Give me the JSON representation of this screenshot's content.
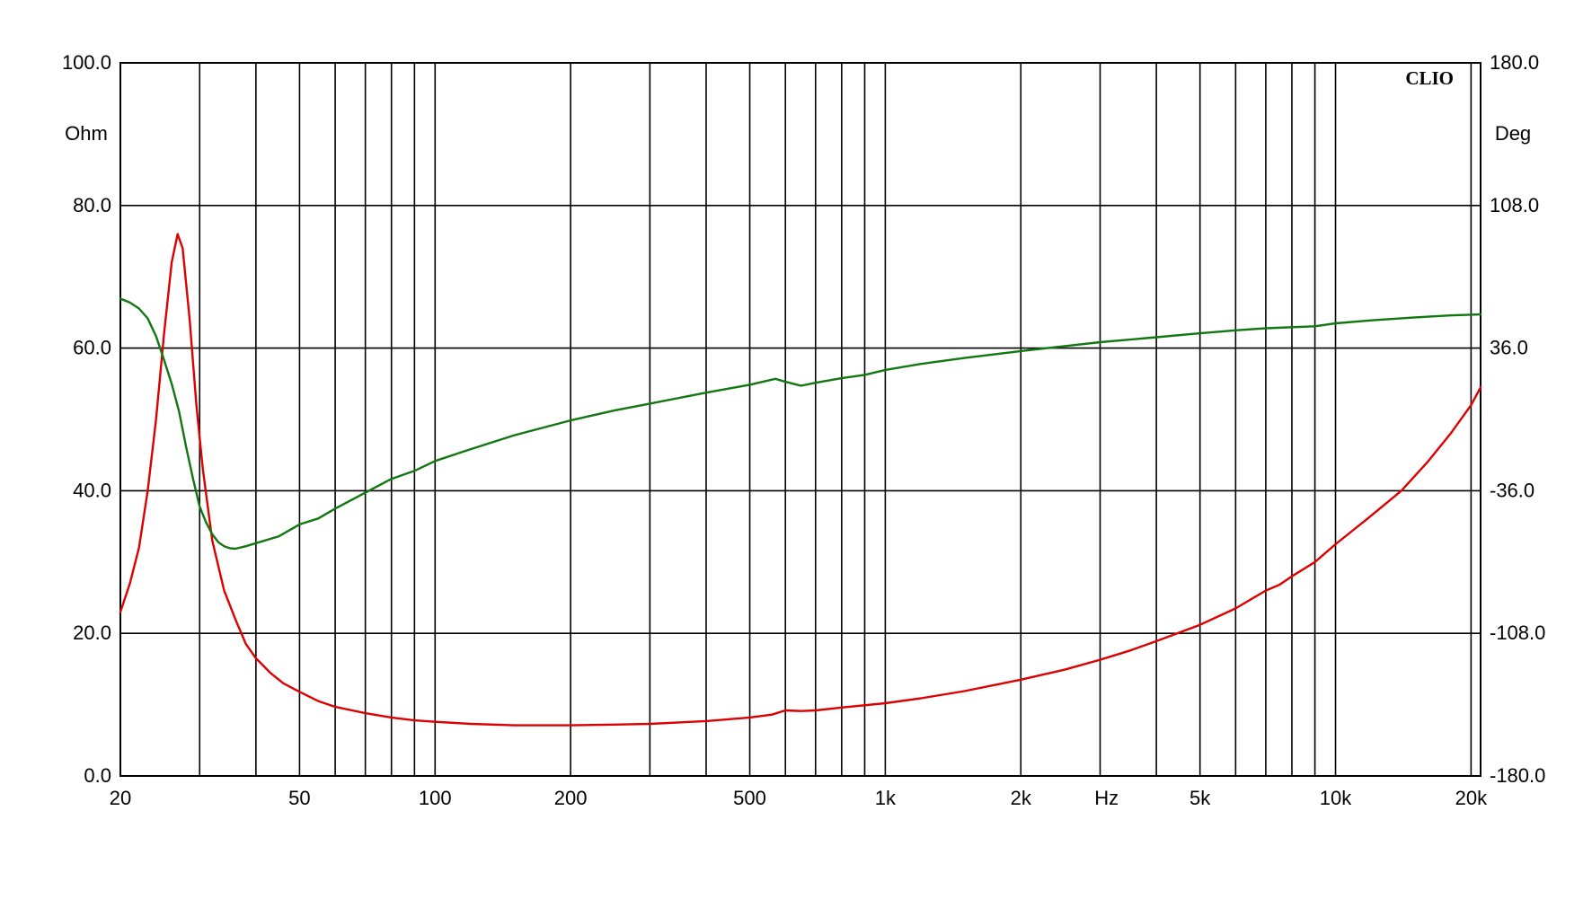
{
  "chart_data": {
    "type": "line",
    "brand": "CLIO",
    "x_scale": "log",
    "xlim": [
      20,
      21000
    ],
    "ylim_left": [
      0,
      100
    ],
    "ylim_right": [
      -180,
      180
    ],
    "grid": true,
    "left_unit": "Ohm",
    "right_unit": "Deg",
    "x_unit": "Hz",
    "x_ticks": [
      {
        "value": 20,
        "label": "20"
      },
      {
        "value": 50,
        "label": "50"
      },
      {
        "value": 100,
        "label": "100"
      },
      {
        "value": 200,
        "label": "200"
      },
      {
        "value": 500,
        "label": "500"
      },
      {
        "value": 1000,
        "label": "1k"
      },
      {
        "value": 2000,
        "label": "2k"
      },
      {
        "value": 5000,
        "label": "5k"
      },
      {
        "value": 10000,
        "label": "10k"
      },
      {
        "value": 20000,
        "label": "20k"
      }
    ],
    "x_gridlines": [
      20,
      30,
      40,
      50,
      60,
      70,
      80,
      90,
      100,
      200,
      300,
      400,
      500,
      600,
      700,
      800,
      900,
      1000,
      2000,
      3000,
      4000,
      5000,
      6000,
      7000,
      8000,
      9000,
      10000,
      20000
    ],
    "y_left_ticks": [
      {
        "value": 100,
        "label": "100.0"
      },
      {
        "value": 80,
        "label": "80.0"
      },
      {
        "value": 60,
        "label": "60.0"
      },
      {
        "value": 40,
        "label": "40.0"
      },
      {
        "value": 20,
        "label": "20.0"
      },
      {
        "value": 0,
        "label": "0.0"
      }
    ],
    "y_right_ticks": [
      {
        "value": 180,
        "label": "180.0"
      },
      {
        "value": 108,
        "label": "108.0"
      },
      {
        "value": 36,
        "label": "36.0"
      },
      {
        "value": -36,
        "label": "-36.0"
      },
      {
        "value": -108,
        "label": "-108.0"
      },
      {
        "value": -180,
        "label": "-180.0"
      }
    ],
    "series": [
      {
        "axis": "left",
        "color": "#dd0000",
        "points": [
          [
            20,
            23
          ],
          [
            21,
            27
          ],
          [
            22,
            32
          ],
          [
            23,
            40
          ],
          [
            24,
            50
          ],
          [
            25,
            62
          ],
          [
            26,
            72
          ],
          [
            26.8,
            76
          ],
          [
            27.5,
            74
          ],
          [
            28.5,
            64
          ],
          [
            29.5,
            52
          ],
          [
            30.5,
            43
          ],
          [
            32,
            33
          ],
          [
            34,
            26
          ],
          [
            36,
            22
          ],
          [
            38,
            18.5
          ],
          [
            40,
            16.5
          ],
          [
            43,
            14.5
          ],
          [
            46,
            13
          ],
          [
            50,
            11.8
          ],
          [
            55,
            10.5
          ],
          [
            60,
            9.7
          ],
          [
            70,
            8.8
          ],
          [
            80,
            8.2
          ],
          [
            90,
            7.8
          ],
          [
            100,
            7.6
          ],
          [
            120,
            7.3
          ],
          [
            150,
            7.1
          ],
          [
            200,
            7.1
          ],
          [
            250,
            7.2
          ],
          [
            300,
            7.3
          ],
          [
            400,
            7.7
          ],
          [
            500,
            8.2
          ],
          [
            560,
            8.6
          ],
          [
            600,
            9.2
          ],
          [
            650,
            9.1
          ],
          [
            700,
            9.2
          ],
          [
            800,
            9.6
          ],
          [
            1000,
            10.2
          ],
          [
            1200,
            10.9
          ],
          [
            1500,
            11.9
          ],
          [
            2000,
            13.5
          ],
          [
            2500,
            14.9
          ],
          [
            3000,
            16.3
          ],
          [
            3500,
            17.6
          ],
          [
            4000,
            18.9
          ],
          [
            5000,
            21.2
          ],
          [
            6000,
            23.5
          ],
          [
            7000,
            26
          ],
          [
            7500,
            26.8
          ],
          [
            8000,
            28
          ],
          [
            9000,
            30
          ],
          [
            10000,
            32.5
          ],
          [
            12000,
            36.5
          ],
          [
            14000,
            40
          ],
          [
            16000,
            44
          ],
          [
            18000,
            48
          ],
          [
            20000,
            52
          ],
          [
            21000,
            54.5
          ]
        ]
      },
      {
        "axis": "right",
        "color": "#117711",
        "points": [
          [
            20,
            61
          ],
          [
            21,
            59
          ],
          [
            22,
            56
          ],
          [
            23,
            51
          ],
          [
            24,
            42
          ],
          [
            25,
            30
          ],
          [
            26,
            18
          ],
          [
            27,
            4
          ],
          [
            28,
            -14
          ],
          [
            29,
            -30
          ],
          [
            30,
            -44
          ],
          [
            31,
            -52
          ],
          [
            32,
            -58
          ],
          [
            33,
            -62
          ],
          [
            34,
            -64
          ],
          [
            35,
            -65
          ],
          [
            36,
            -65.3
          ],
          [
            38,
            -64
          ],
          [
            40,
            -62.5
          ],
          [
            45,
            -59
          ],
          [
            50,
            -53
          ],
          [
            55,
            -50
          ],
          [
            60,
            -45
          ],
          [
            70,
            -37
          ],
          [
            80,
            -30
          ],
          [
            90,
            -26
          ],
          [
            100,
            -21
          ],
          [
            120,
            -15
          ],
          [
            150,
            -8
          ],
          [
            200,
            -0.5
          ],
          [
            250,
            4.5
          ],
          [
            300,
            8
          ],
          [
            400,
            13.5
          ],
          [
            500,
            17.5
          ],
          [
            570,
            20.5
          ],
          [
            600,
            19
          ],
          [
            650,
            17
          ],
          [
            700,
            18.5
          ],
          [
            800,
            20.8
          ],
          [
            900,
            22.5
          ],
          [
            1000,
            25
          ],
          [
            1200,
            28
          ],
          [
            1500,
            31
          ],
          [
            2000,
            34.5
          ],
          [
            2500,
            37
          ],
          [
            3000,
            39
          ],
          [
            4000,
            41.5
          ],
          [
            5000,
            43.5
          ],
          [
            6000,
            45
          ],
          [
            7000,
            46
          ],
          [
            9000,
            47
          ],
          [
            10000,
            48.5
          ],
          [
            12000,
            50
          ],
          [
            15000,
            51.5
          ],
          [
            18000,
            52.5
          ],
          [
            21000,
            53
          ]
        ]
      }
    ]
  }
}
